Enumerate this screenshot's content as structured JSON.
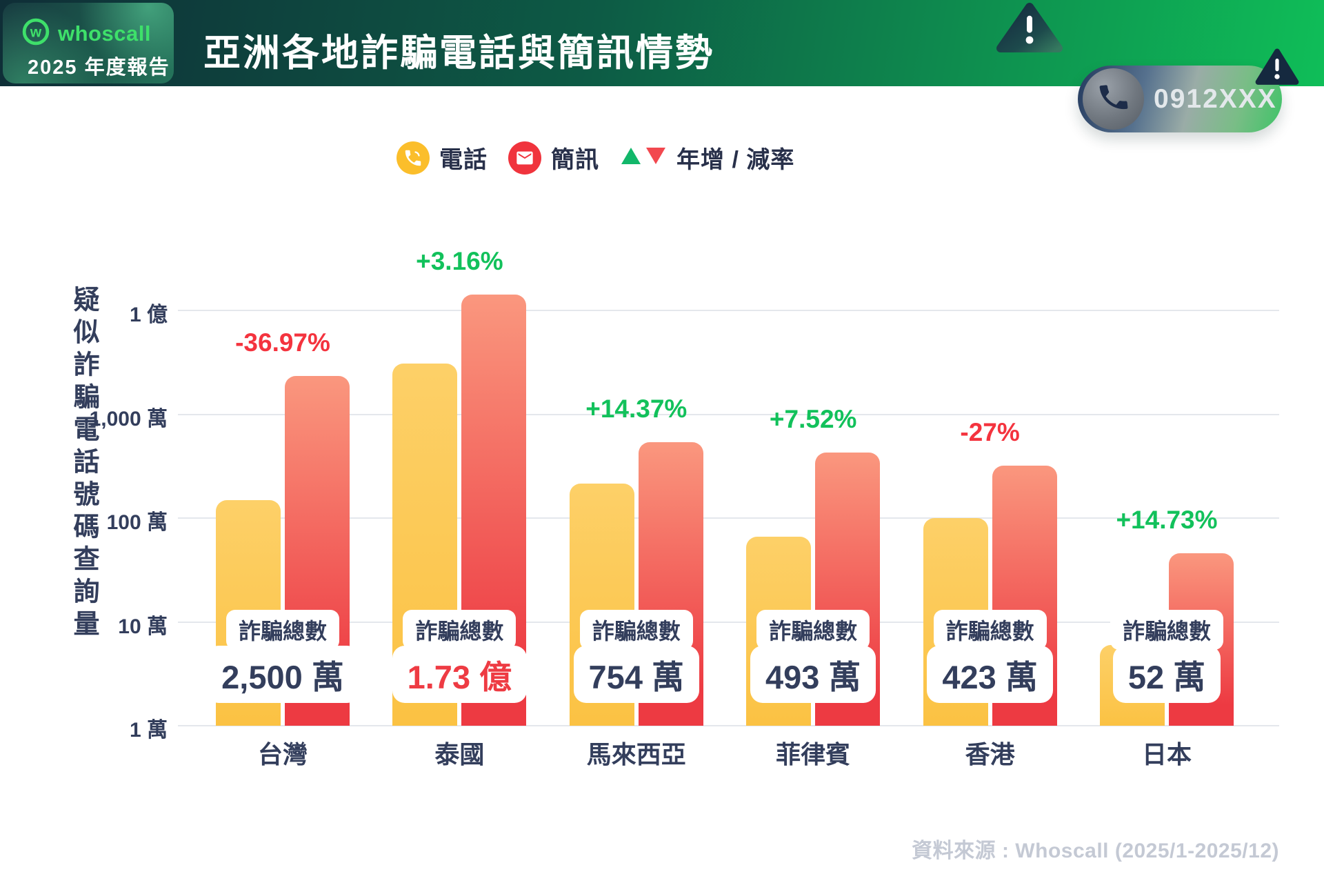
{
  "header": {
    "brand": "whoscall",
    "report_label": "2025 年度報告",
    "title": "亞洲各地詐騙電話與簡訊情勢"
  },
  "caller_pill": {
    "number": "0912XXX"
  },
  "legend": {
    "phone_label": "電話",
    "sms_label": "簡訊",
    "rate_label": "年增 / 減率"
  },
  "source_note": "資料來源 : Whoscall (2025/1-2025/12)",
  "chart_data": {
    "type": "bar",
    "scale": "log",
    "unit": "萬",
    "ylabel": "疑似詐騙電話號碼查詢量",
    "xlabel": "",
    "grid": true,
    "ylim_wan": [
      1,
      10000
    ],
    "y_ticks": [
      {
        "label": "1 億",
        "value_wan": 10000
      },
      {
        "label": "1,000 萬",
        "value_wan": 1000
      },
      {
        "label": "100 萬",
        "value_wan": 100
      },
      {
        "label": "10 萬",
        "value_wan": 10
      },
      {
        "label": "1 萬",
        "value_wan": 1
      }
    ],
    "categories": [
      "台灣",
      "泰國",
      "馬來西亞",
      "菲律賓",
      "香港",
      "日本"
    ],
    "series": [
      {
        "name": "電話",
        "color_top": "#FDD068",
        "color_bottom": "#FBC243",
        "values_wan": [
          150,
          3100,
          216,
          66,
          100,
          6
        ]
      },
      {
        "name": "簡訊",
        "color_top": "#FA977E",
        "color_bottom": "#ED3A42",
        "values_wan": [
          2350,
          14200,
          538,
          427,
          323,
          46
        ]
      }
    ],
    "totals": [
      {
        "label": "詐騙總數",
        "value": "2,500 萬",
        "highlight": false
      },
      {
        "label": "詐騙總數",
        "value": "1.73 億",
        "highlight": true
      },
      {
        "label": "詐騙總數",
        "value": "754 萬",
        "highlight": false
      },
      {
        "label": "詐騙總數",
        "value": "493 萬",
        "highlight": false
      },
      {
        "label": "詐騙總數",
        "value": "423 萬",
        "highlight": false
      },
      {
        "label": "詐騙總數",
        "value": "52 萬",
        "highlight": false
      }
    ],
    "yoy_change": [
      "-36.97%",
      "+3.16%",
      "+14.37%",
      "+7.52%",
      "-27%",
      "+14.73%"
    ],
    "up_color": "#12C15B",
    "down_color": "#F4333E",
    "highlight_value_color": "#EE3B43",
    "text_color": "#333E5C"
  }
}
